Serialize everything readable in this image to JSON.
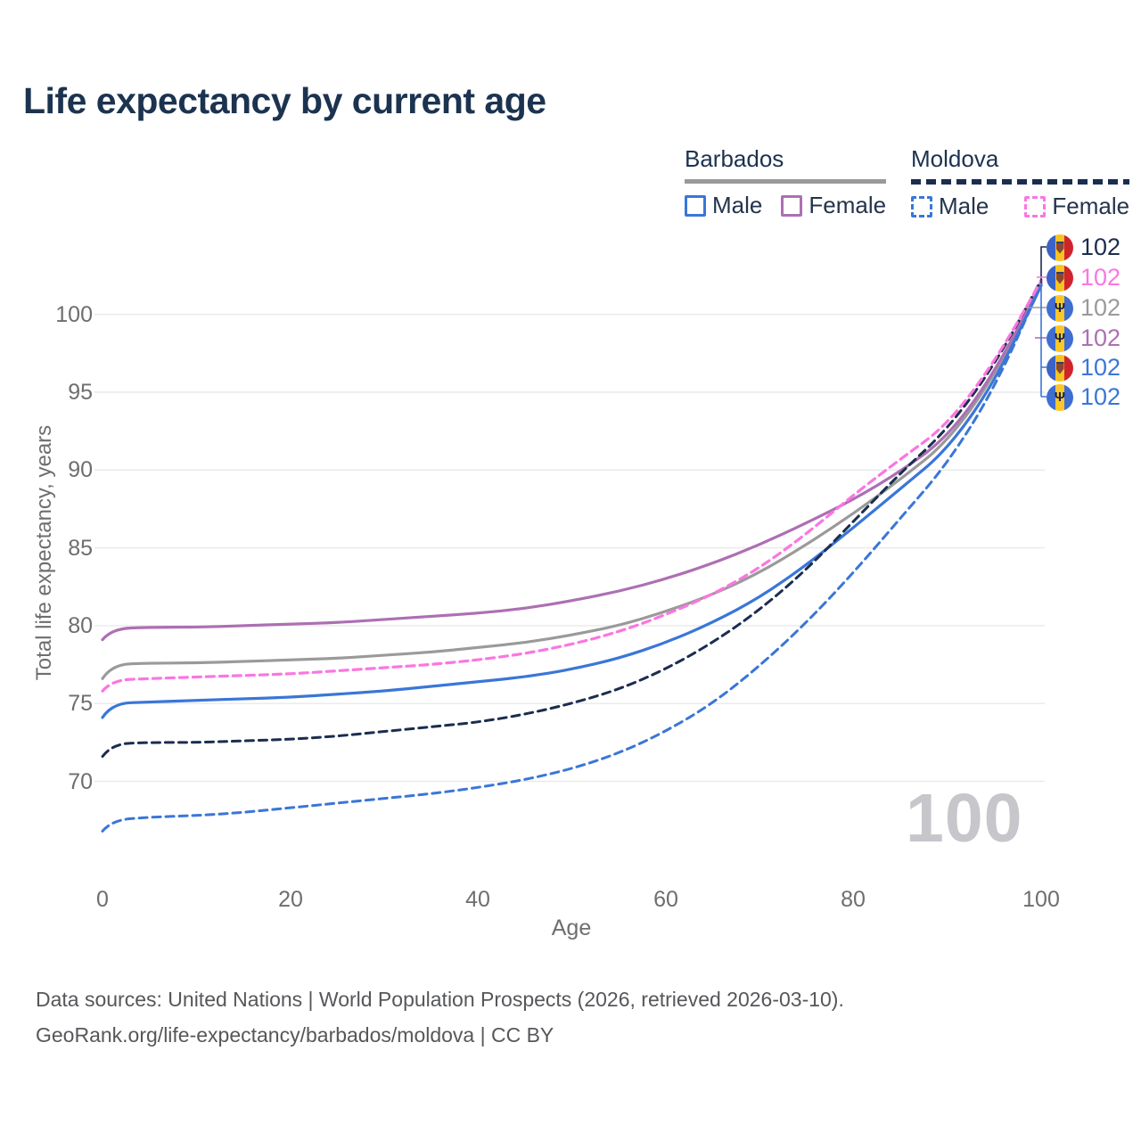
{
  "title": "Life expectancy by current age",
  "legend": {
    "groups": [
      {
        "name": "Barbados",
        "line_style": "solid",
        "line_color": "#9a9a9a",
        "items": [
          {
            "label": "Male",
            "color": "#3a76d8",
            "dash": false
          },
          {
            "label": "Female",
            "color": "#ad6fb3",
            "dash": false
          }
        ]
      },
      {
        "name": "Moldova",
        "line_style": "dashed",
        "line_color": "#1b2d4f",
        "items": [
          {
            "label": "Male",
            "color": "#3a76d8",
            "dash": true
          },
          {
            "label": "Female",
            "color": "#fb76e1",
            "dash": true
          }
        ]
      }
    ]
  },
  "chart_data": {
    "type": "line",
    "title": "Life expectancy by current age",
    "xlabel": "Age",
    "ylabel": "Total life expectancy, years",
    "x_ticks": [
      0,
      20,
      40,
      60,
      80,
      100
    ],
    "y_ticks": [
      70,
      75,
      80,
      85,
      90,
      95,
      100
    ],
    "xlim": [
      0,
      100
    ],
    "ylim": [
      66,
      103
    ],
    "grid": "horizontal",
    "x": [
      0,
      1,
      5,
      10,
      15,
      20,
      25,
      30,
      35,
      40,
      45,
      50,
      55,
      60,
      65,
      70,
      75,
      80,
      85,
      90,
      95,
      100
    ],
    "series": [
      {
        "id": "barbados_total",
        "name": "Barbados (both sexes)",
        "country": "Barbados",
        "sex": "Both",
        "color": "#9a9a9a",
        "dash": false,
        "width": 3.2,
        "values": [
          76.6,
          77.5,
          77.6,
          77.6,
          77.7,
          77.8,
          77.9,
          78.1,
          78.3,
          78.6,
          78.9,
          79.4,
          80.0,
          80.9,
          82.0,
          83.4,
          85.2,
          87.2,
          89.4,
          91.8,
          96.0,
          102.05
        ]
      },
      {
        "id": "barbados_female",
        "name": "Barbados Female",
        "country": "Barbados",
        "sex": "Female",
        "color": "#ad6fb3",
        "dash": false,
        "width": 3.2,
        "values": [
          79.1,
          79.8,
          79.9,
          79.9,
          80.0,
          80.1,
          80.2,
          80.4,
          80.6,
          80.8,
          81.1,
          81.6,
          82.2,
          83.0,
          84.0,
          85.2,
          86.6,
          88.1,
          89.9,
          92.1,
          96.2,
          102.0
        ]
      },
      {
        "id": "barbados_male",
        "name": "Barbados Male",
        "country": "Barbados",
        "sex": "Male",
        "color": "#3a76d8",
        "dash": false,
        "width": 3.2,
        "values": [
          74.1,
          75.0,
          75.1,
          75.2,
          75.3,
          75.4,
          75.6,
          75.8,
          76.1,
          76.4,
          76.7,
          77.2,
          77.9,
          78.9,
          80.2,
          81.8,
          83.9,
          86.3,
          88.8,
          91.3,
          95.6,
          101.85
        ]
      },
      {
        "id": "moldova_total",
        "name": "Moldova (both sexes)",
        "country": "Moldova",
        "sex": "Both",
        "color": "#1b2d4f",
        "dash": true,
        "width": 3.0,
        "values": [
          71.6,
          72.4,
          72.5,
          72.5,
          72.6,
          72.7,
          72.9,
          73.2,
          73.5,
          73.8,
          74.3,
          75.0,
          75.9,
          77.2,
          78.9,
          81.0,
          83.6,
          86.7,
          89.8,
          92.6,
          96.7,
          102.2
        ]
      },
      {
        "id": "moldova_male",
        "name": "Moldova Male",
        "country": "Moldova",
        "sex": "Male",
        "color": "#3a76d8",
        "dash": true,
        "width": 3.0,
        "values": [
          66.8,
          67.5,
          67.7,
          67.8,
          68.0,
          68.3,
          68.6,
          68.9,
          69.2,
          69.6,
          70.1,
          70.8,
          71.8,
          73.2,
          75.0,
          77.4,
          80.2,
          83.4,
          86.9,
          90.4,
          95.2,
          101.9
        ]
      },
      {
        "id": "moldova_female",
        "name": "Moldova Female",
        "country": "Moldova",
        "sex": "Female",
        "color": "#fb76e1",
        "dash": true,
        "width": 3.2,
        "values": [
          75.8,
          76.5,
          76.6,
          76.7,
          76.8,
          76.9,
          77.1,
          77.3,
          77.5,
          77.8,
          78.2,
          78.8,
          79.6,
          80.7,
          82.0,
          83.7,
          85.9,
          88.4,
          90.7,
          92.9,
          96.9,
          102.15
        ]
      }
    ],
    "endpoint_labels": [
      {
        "flag": "moldova",
        "series": "moldova_total",
        "value": "102",
        "color": "#1b2d4f"
      },
      {
        "flag": "moldova",
        "series": "moldova_female",
        "value": "102",
        "color": "#fb76e1"
      },
      {
        "flag": "barbados",
        "series": "barbados_total",
        "value": "102",
        "color": "#9a9a9a"
      },
      {
        "flag": "barbados",
        "series": "barbados_female",
        "value": "102",
        "color": "#ad6fb3"
      },
      {
        "flag": "moldova",
        "series": "moldova_male",
        "value": "102",
        "color": "#3a76d8"
      },
      {
        "flag": "barbados",
        "series": "barbados_male",
        "value": "102",
        "color": "#3a76d8"
      }
    ],
    "watermark": "100"
  },
  "footer": {
    "line1": "Data sources: United Nations | World Population Prospects (2026, retrieved 2026-03-10).",
    "line2": "GeoRank.org/life-expectancy/barbados/moldova | CC BY"
  }
}
